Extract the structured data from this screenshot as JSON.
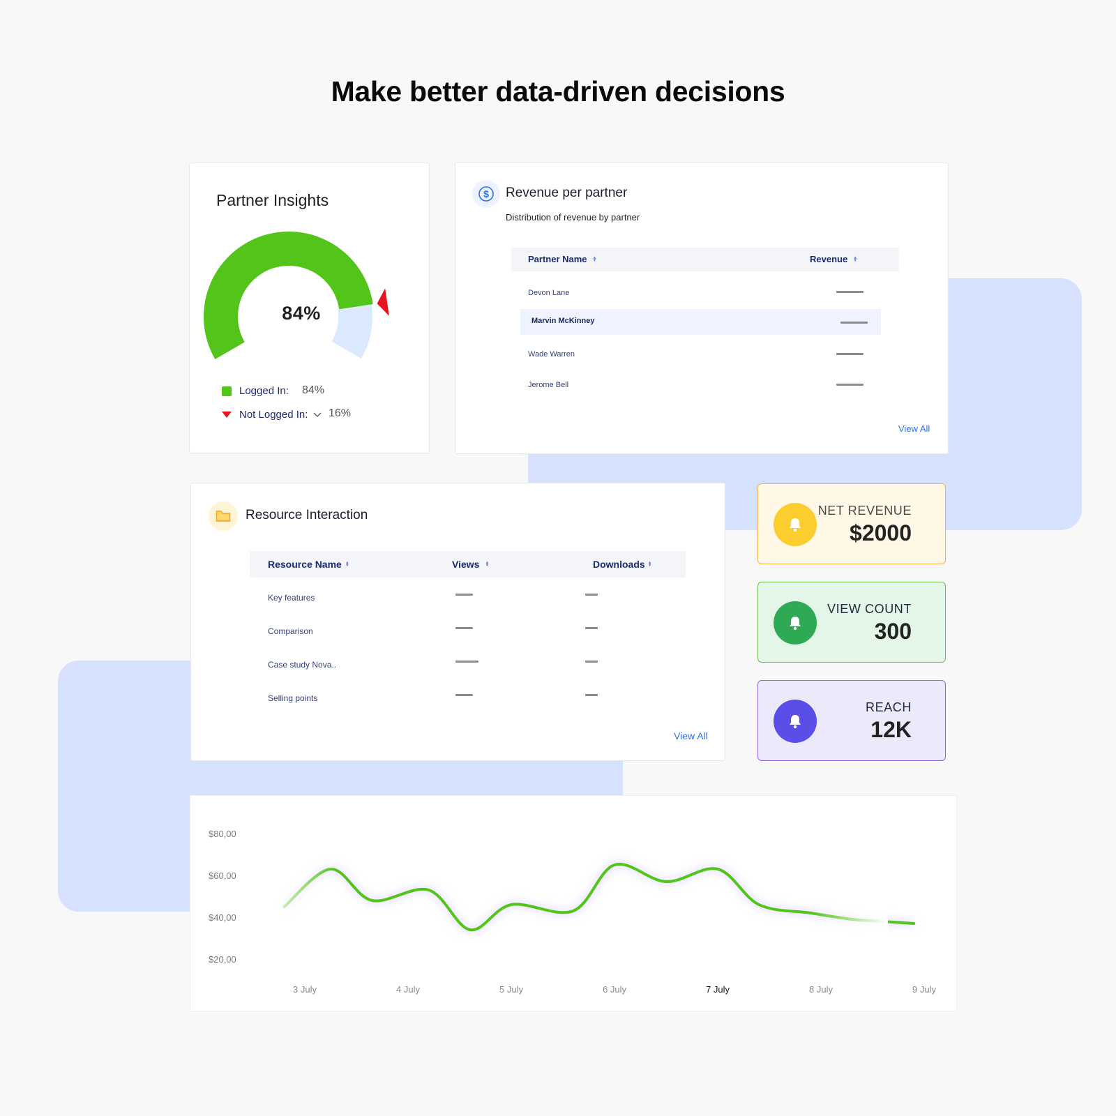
{
  "headline": "Make better data-driven decisions",
  "partner_insights": {
    "title": "Partner Insights",
    "percent_label": "84%",
    "logged_in_fraction": 0.84,
    "legend": {
      "logged_in_label": "Logged In:",
      "logged_in_value": "84%",
      "not_logged_in_label": "Not Logged In:",
      "not_logged_in_value": "16%"
    },
    "colors": {
      "logged_in": "#52c41a",
      "not_logged_in": "#dbe9ff",
      "marker": "#e5141e"
    }
  },
  "revenue_per_partner": {
    "icon": "dollar-icon",
    "title": "Revenue per partner",
    "subtitle": "Distribution of revenue by partner",
    "columns": [
      "Partner Name",
      "Revenue"
    ],
    "rows": [
      {
        "name": "Devon Lane"
      },
      {
        "name": "Marvin McKinney",
        "highlighted": true
      },
      {
        "name": "Wade Warren"
      },
      {
        "name": "Jerome Bell"
      }
    ],
    "view_all": "View All"
  },
  "resource_interaction": {
    "icon": "folder-icon",
    "title": "Resource Interaction",
    "columns": [
      "Resource Name",
      "Views",
      "Downloads"
    ],
    "rows": [
      {
        "name": "Key features"
      },
      {
        "name": "Comparison"
      },
      {
        "name": "Case study Nova.."
      },
      {
        "name": "Selling points"
      }
    ],
    "view_all": "View All"
  },
  "stats": [
    {
      "label": "NET REVENUE",
      "value": "$2000",
      "icon": "bell-icon",
      "bg": "#fff8e6",
      "border": "#f5b14c",
      "icon_bg": "#fbcd2e",
      "label_color": "#4a4a4a"
    },
    {
      "label": "VIEW COUNT",
      "value": "300",
      "icon": "bell-icon",
      "bg": "#e3f6e8",
      "border": "#6cc04a",
      "icon_bg": "#2eaa55",
      "label_color": "#1d2a3a"
    },
    {
      "label": "REACH",
      "value": "12K",
      "icon": "bell-icon",
      "bg": "#ece9fb",
      "border": "#8d6ad8",
      "icon_bg": "#5a4ee8",
      "label_color": "#1d2a3a"
    }
  ],
  "chart_data": {
    "type": "line",
    "y_ticks": [
      "$80,00",
      "$60,00",
      "$40,00",
      "$20,00"
    ],
    "ylim": [
      20,
      80
    ],
    "categories": [
      "3 July",
      "4 July",
      "5 July",
      "6 July",
      "7 July",
      "8 July",
      "9 July"
    ],
    "active_category": "7 July",
    "grid": false,
    "series": [
      {
        "color": "#52c41a",
        "x": [
          2.8,
          3.25,
          3.65,
          4.2,
          4.6,
          5.0,
          5.6,
          6.0,
          6.5,
          7.0,
          7.4,
          7.9,
          8.3,
          8.6,
          8.9
        ],
        "y": [
          45,
          63,
          48,
          53,
          34,
          46,
          43,
          65,
          57,
          63,
          46,
          42,
          39,
          38,
          37
        ]
      }
    ]
  }
}
